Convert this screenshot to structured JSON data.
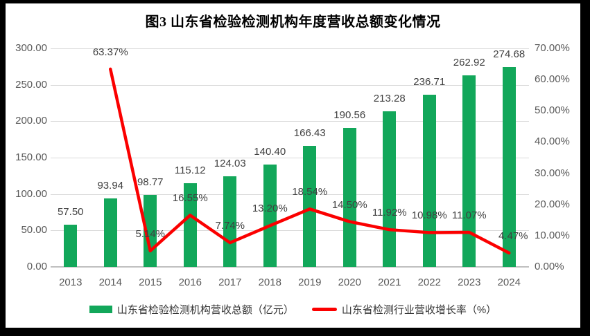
{
  "chart_data": {
    "type": "combo",
    "title": "图3  山东省检验检测机构年度营收总额变化情况",
    "categories": [
      "2013",
      "2014",
      "2015",
      "2016",
      "2017",
      "2018",
      "2019",
      "2020",
      "2021",
      "2022",
      "2023",
      "2024"
    ],
    "series": [
      {
        "name": "山东省检验检测机构营收总额（亿元）",
        "type": "bar",
        "axis": "left",
        "color": "#12a75a",
        "values": [
          57.5,
          93.94,
          98.77,
          115.12,
          124.03,
          140.4,
          166.43,
          190.56,
          213.28,
          236.71,
          262.92,
          274.68
        ],
        "labels": [
          "57.50",
          "93.94",
          "98.77",
          "115.12",
          "124.03",
          "140.40",
          "166.43",
          "190.56",
          "213.28",
          "236.71",
          "262.92",
          "274.68"
        ]
      },
      {
        "name": "山东省检测行业营收增长率（%）",
        "type": "line",
        "axis": "right",
        "color": "#fb0000",
        "values": [
          null,
          63.37,
          5.14,
          16.55,
          7.74,
          13.2,
          18.54,
          14.5,
          11.92,
          10.98,
          11.07,
          4.47
        ],
        "labels": [
          null,
          "63.37%",
          "5.14%",
          "16.55%",
          "7.74%",
          "13.20%",
          "18.54%",
          "14.50%",
          "11.92%",
          "10.98%",
          "11.07%",
          "4.47%"
        ]
      }
    ],
    "axes": {
      "left": {
        "min": 0,
        "max": 300,
        "step": 50,
        "tick_values": [
          0,
          50,
          100,
          150,
          200,
          250,
          300
        ],
        "tick_labels": [
          "0.00",
          "50.00",
          "100.00",
          "150.00",
          "200.00",
          "250.00",
          "300.00"
        ]
      },
      "right": {
        "min": 0,
        "max": 70,
        "step": 10,
        "tick_values": [
          0,
          10,
          20,
          30,
          40,
          50,
          60,
          70
        ],
        "tick_labels": [
          "0.00%",
          "10.00%",
          "20.00%",
          "30.00%",
          "40.00%",
          "50.00%",
          "60.00%",
          "70.00%"
        ]
      }
    },
    "grid": true,
    "legend_position": "bottom",
    "label_offsets": {
      "11": [
        6,
        0
      ]
    }
  }
}
